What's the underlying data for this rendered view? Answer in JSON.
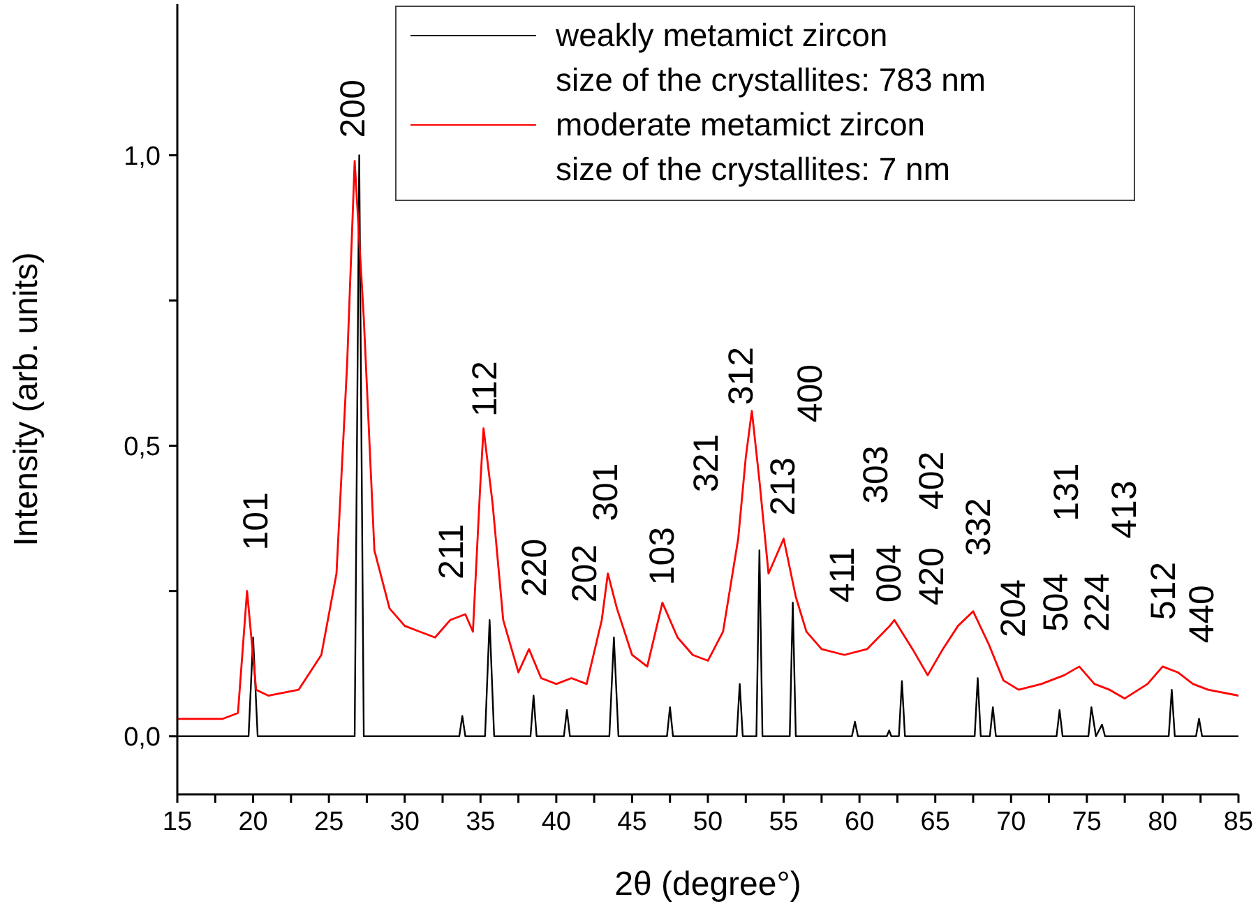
{
  "chart_data": {
    "type": "line",
    "xlabel": "2θ (degree°)",
    "ylabel": "Intensity (arb. units)",
    "xlim": [
      15,
      85
    ],
    "xticks": [
      15,
      {
        "value": 17.5,
        "label": null
      },
      20,
      {
        "value": 22.5,
        "label": null
      },
      25,
      {
        "value": 27.5,
        "label": null
      },
      30,
      {
        "value": 32.5,
        "label": null
      },
      35,
      {
        "value": 37.5,
        "label": null
      },
      40,
      {
        "value": 42.5,
        "label": null
      },
      45,
      {
        "value": 47.5,
        "label": null
      },
      50,
      {
        "value": 52.5,
        "label": null
      },
      55,
      {
        "value": 57.5,
        "label": null
      },
      60,
      {
        "value": 62.5,
        "label": null
      },
      65,
      {
        "value": 67.5,
        "label": null
      },
      70,
      {
        "value": 72.5,
        "label": null
      },
      75,
      {
        "value": 77.5,
        "label": null
      },
      80,
      {
        "value": 82.5,
        "label": null
      },
      85
    ],
    "ylim": [
      -0.1,
      1.26
    ],
    "yticks": [
      {
        "value": 0,
        "label": "0,0"
      },
      {
        "value": 0.25,
        "label": null
      },
      {
        "value": 0.5,
        "label": "0,5"
      },
      {
        "value": 0.75,
        "label": null
      },
      {
        "value": 1,
        "label": "1,0"
      }
    ],
    "grid": false,
    "legend": "top right",
    "marker": "none",
    "line_style": "solid",
    "series": [
      {
        "name": "weakly metamict zircon\nsize of the crystallites: 783 nm",
        "color": "#000000",
        "x": [
          15,
          19.7,
          20.0,
          20.3,
          26.7,
          27.0,
          27.3,
          33.6,
          33.8,
          34.0,
          35.3,
          35.6,
          35.9,
          38.3,
          38.5,
          38.7,
          40.5,
          40.7,
          40.9,
          43.5,
          43.8,
          44.1,
          47.3,
          47.5,
          47.7,
          51.9,
          52.1,
          52.3,
          53.2,
          53.4,
          53.6,
          55.4,
          55.6,
          55.8,
          59.5,
          59.7,
          59.9,
          61.8,
          61.96,
          62.1,
          62.6,
          62.8,
          63.0,
          67.6,
          67.8,
          68.0,
          68.6,
          68.8,
          69.0,
          73.0,
          73.2,
          73.4,
          75.1,
          75.3,
          75.6,
          76.0,
          76.2,
          80.4,
          80.6,
          80.8,
          82.2,
          82.4,
          82.6,
          85
        ],
        "values": [
          0,
          0,
          0.17,
          0,
          0,
          1.0,
          0,
          0,
          0.035,
          0,
          0,
          0.2,
          0,
          0,
          0.07,
          0,
          0,
          0.045,
          0,
          0,
          0.17,
          0,
          0,
          0.05,
          0,
          0,
          0.09,
          0,
          0,
          0.32,
          0,
          0,
          0.23,
          0,
          0,
          0.025,
          0,
          0,
          0.01,
          0,
          0,
          0.095,
          0,
          0,
          0.1,
          0,
          0,
          0.05,
          0,
          0,
          0.045,
          0,
          0,
          0.05,
          0,
          0.02,
          0,
          0,
          0.08,
          0,
          0,
          0.03,
          0,
          0
        ]
      },
      {
        "name": "moderate metamict zircon\nsize of the crystallites: 7 nm",
        "color": "#ff0000",
        "x": [
          15,
          18,
          19,
          19.6,
          20.2,
          21,
          23,
          24.5,
          25.5,
          26.2,
          26.7,
          27.3,
          28,
          29,
          30,
          31,
          32,
          33,
          34,
          34.5,
          35.0,
          35.2,
          35.8,
          36.5,
          37.5,
          38.2,
          39,
          40,
          41,
          42,
          43,
          43.4,
          44,
          45,
          46,
          47,
          48,
          49,
          50,
          51,
          52,
          52.5,
          52.9,
          53.4,
          54,
          54.5,
          55,
          55.8,
          56.5,
          57.5,
          59,
          60.5,
          62,
          62.3,
          63.5,
          64.5,
          65.5,
          66.5,
          67.5,
          68.5,
          69.5,
          70.5,
          72,
          73.5,
          74.5,
          75.5,
          76.5,
          77.5,
          79,
          80,
          81,
          82,
          83,
          85
        ],
        "values": [
          0.03,
          0.03,
          0.04,
          0.25,
          0.08,
          0.07,
          0.08,
          0.14,
          0.28,
          0.64,
          0.99,
          0.72,
          0.32,
          0.22,
          0.19,
          0.18,
          0.17,
          0.2,
          0.21,
          0.18,
          0.44,
          0.53,
          0.4,
          0.2,
          0.11,
          0.15,
          0.1,
          0.09,
          0.1,
          0.09,
          0.2,
          0.28,
          0.22,
          0.14,
          0.12,
          0.23,
          0.17,
          0.14,
          0.13,
          0.18,
          0.34,
          0.48,
          0.56,
          0.44,
          0.28,
          0.31,
          0.34,
          0.24,
          0.18,
          0.15,
          0.14,
          0.15,
          0.19,
          0.2,
          0.15,
          0.105,
          0.15,
          0.19,
          0.215,
          0.16,
          0.096,
          0.08,
          0.09,
          0.105,
          0.12,
          0.09,
          0.08,
          0.065,
          0.09,
          0.12,
          0.11,
          0.09,
          0.08,
          0.07
        ]
      }
    ],
    "annotations": [
      "101",
      "200",
      "211",
      "112",
      "220",
      "202",
      "301",
      "103",
      "321",
      "312",
      "400",
      "213",
      "411",
      "303",
      "004",
      "402",
      "420",
      "332",
      "204",
      "504",
      "131",
      "224",
      "413",
      "512",
      "440"
    ]
  }
}
